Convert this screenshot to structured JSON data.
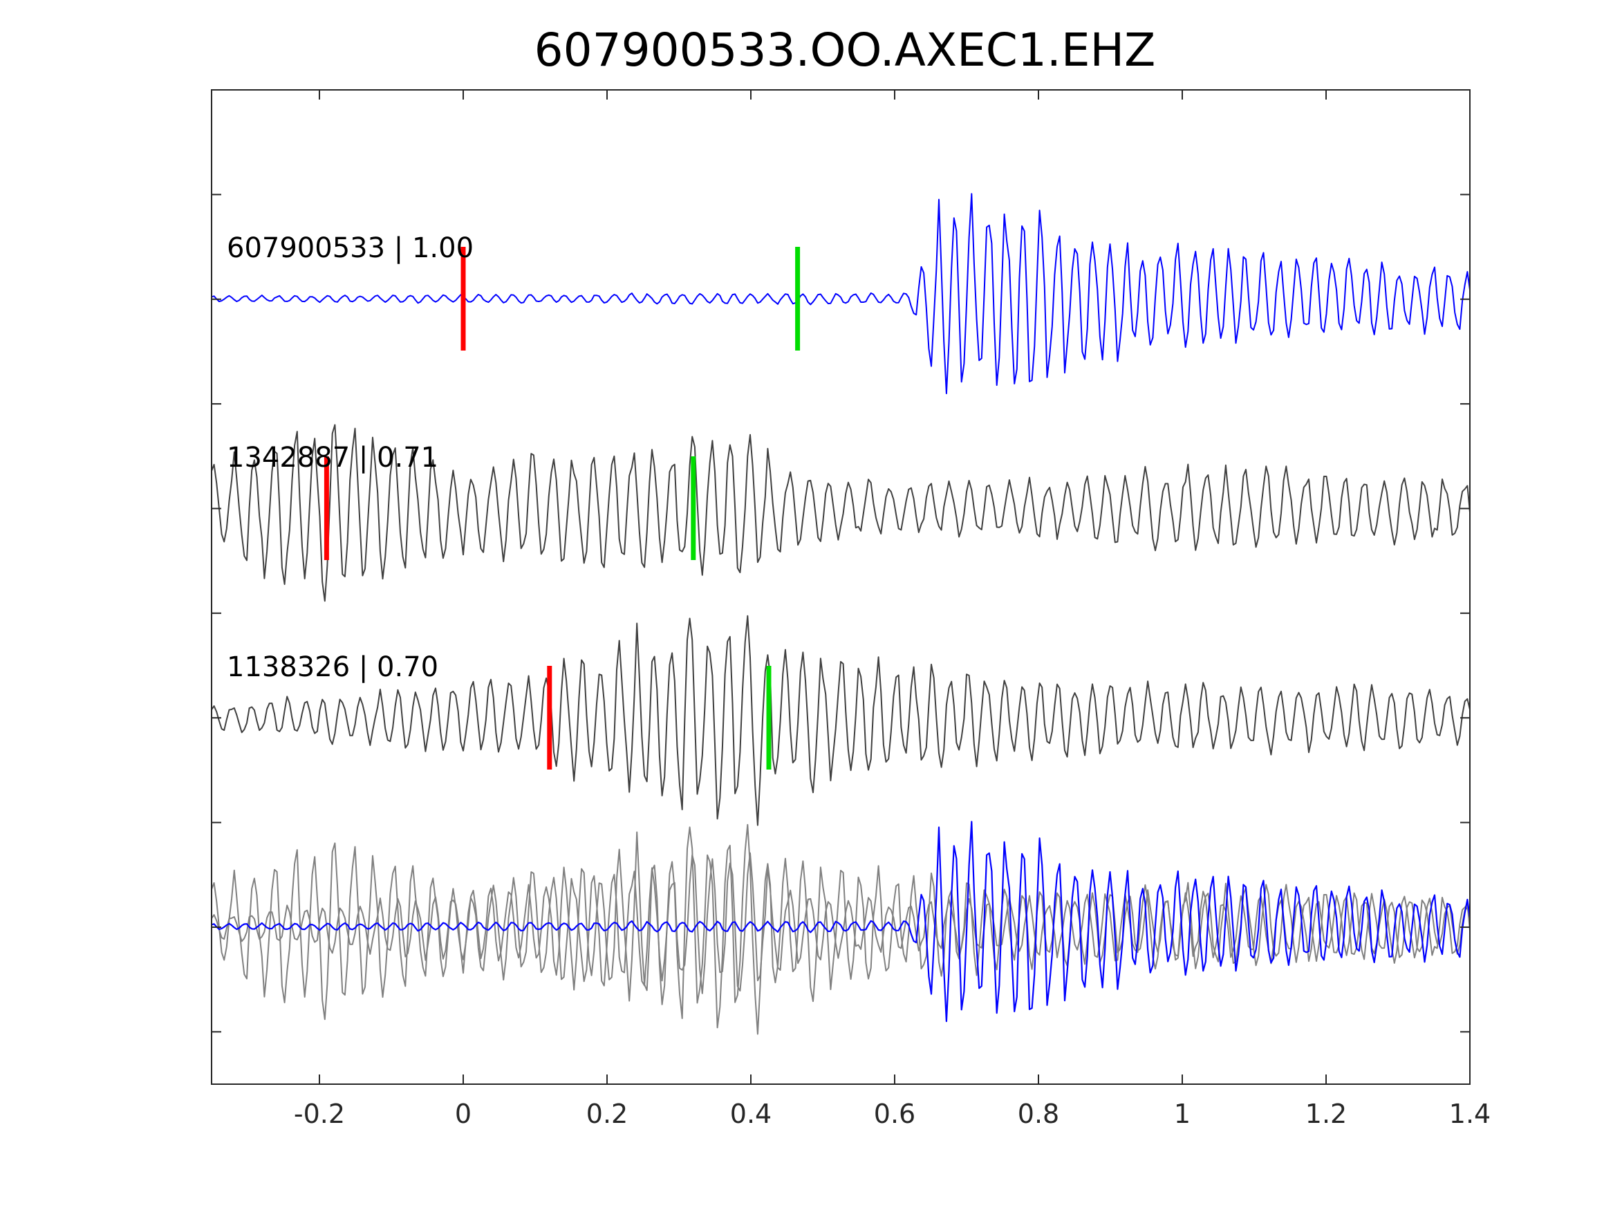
{
  "chart_data": {
    "type": "line",
    "title": "607900533.OO.AXEC1.EHZ",
    "xlabel": "",
    "ylabel": "",
    "xlim": [
      -0.35,
      1.4
    ],
    "x_ticks": [
      "-0.2",
      "0",
      "0.2",
      "0.4",
      "0.6",
      "0.8",
      "1",
      "1.2",
      "1.4"
    ],
    "x_tick_values": [
      -0.2,
      0,
      0.2,
      0.4,
      0.6,
      0.8,
      1,
      1.2,
      1.4
    ],
    "y_ticks_labeled": false,
    "grid": false,
    "colors": {
      "master": "#0000ff",
      "template": "#404040",
      "overlay_template": "#808080",
      "p_pick": "#ff0000",
      "s_pick": "#00dd00"
    },
    "traces": [
      {
        "label": "607900533 | 1.00",
        "event_id": "607900533",
        "correlation": 1.0,
        "color": "#0000ff",
        "p_pick_time": 0.0,
        "s_pick_time": 0.465,
        "envelope": [
          [
            -0.35,
            0.03
          ],
          [
            0.62,
            0.06
          ],
          [
            0.66,
            0.9
          ],
          [
            0.8,
            1.0
          ],
          [
            0.85,
            0.7
          ],
          [
            1.0,
            0.55
          ],
          [
            1.4,
            0.3
          ]
        ],
        "period": 0.024,
        "seed": 11
      },
      {
        "label": "1342887 | 0.71",
        "event_id": "1342887",
        "correlation": 0.71,
        "color": "#404040",
        "p_pick_time": -0.19,
        "s_pick_time": 0.32,
        "envelope": [
          [
            -0.35,
            0.45
          ],
          [
            -0.2,
            0.9
          ],
          [
            -0.12,
            0.8
          ],
          [
            0.0,
            0.45
          ],
          [
            0.1,
            0.55
          ],
          [
            0.3,
            0.65
          ],
          [
            0.38,
            0.85
          ],
          [
            0.45,
            0.4
          ],
          [
            0.6,
            0.25
          ],
          [
            0.8,
            0.3
          ],
          [
            1.0,
            0.42
          ],
          [
            1.2,
            0.38
          ],
          [
            1.4,
            0.3
          ]
        ],
        "period": 0.028,
        "seed": 29
      },
      {
        "label": "1138326 | 0.70",
        "event_id": "1138326",
        "correlation": 0.7,
        "color": "#404040",
        "p_pick_time": 0.12,
        "s_pick_time": 0.425,
        "envelope": [
          [
            -0.35,
            0.12
          ],
          [
            -0.1,
            0.3
          ],
          [
            0.1,
            0.45
          ],
          [
            0.2,
            0.75
          ],
          [
            0.3,
            1.0
          ],
          [
            0.4,
            1.05
          ],
          [
            0.45,
            0.75
          ],
          [
            0.6,
            0.55
          ],
          [
            0.8,
            0.4
          ],
          [
            1.0,
            0.35
          ],
          [
            1.4,
            0.3
          ]
        ],
        "period": 0.026,
        "seed": 47
      }
    ],
    "overlay": {
      "description_order": [
        "1342887",
        "1138326",
        "607900533"
      ]
    }
  }
}
